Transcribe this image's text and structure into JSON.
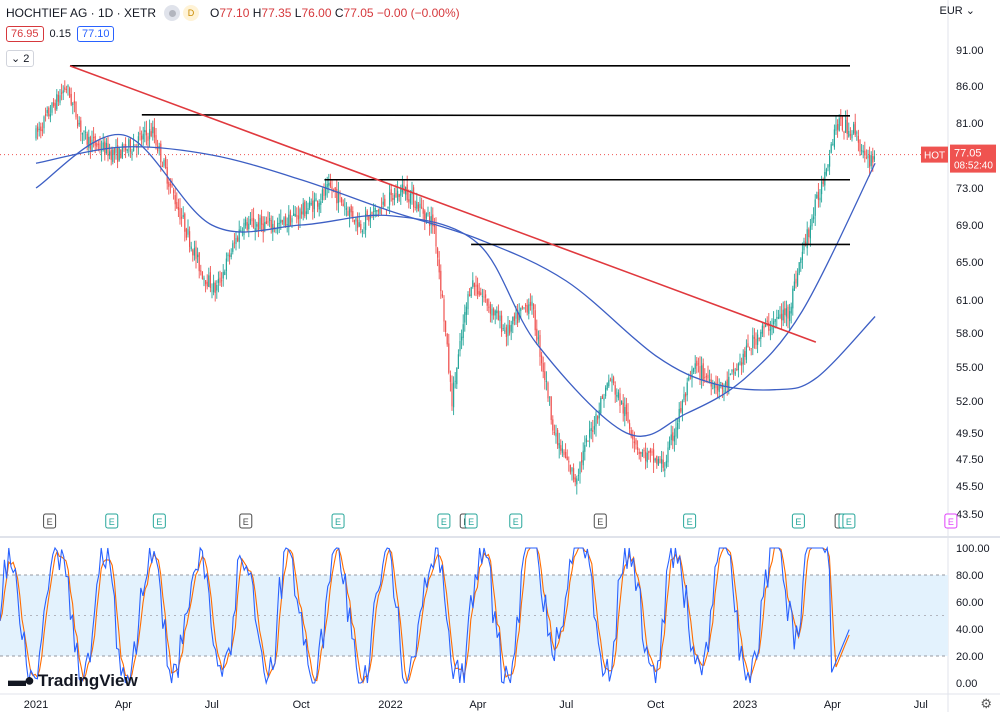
{
  "header": {
    "symbol": "HOCHTIEF AG · 1D · XETR",
    "d_badge": "D",
    "o_label": "O",
    "o_value": "77.10",
    "h_label": "H",
    "h_value": "77.35",
    "l_label": "L",
    "l_value": "76.00",
    "c_label": "C",
    "c_value": "77.05",
    "change": "−0.00 (−0.00%)",
    "bid": "76.95",
    "spread": "0.15",
    "ask": "77.10",
    "collapse_count": "2",
    "currency": "EUR"
  },
  "price_tag": {
    "ticker": "HOT",
    "price": "77.05",
    "countdown": "08:52:40"
  },
  "branding": "TradingView",
  "colors": {
    "up": "#26a69a",
    "down": "#ef5350",
    "trendline": "#e0393e",
    "ma": "#3d5fc4",
    "stoch_k": "#2962ff",
    "stoch_d": "#ff6d00",
    "band": "#e3f2fd"
  },
  "chart_data": [
    {
      "type": "candlestick",
      "title": "",
      "y_ticks": [
        "91.00",
        "86.00",
        "81.00",
        "77.00",
        "73.00",
        "69.00",
        "65.00",
        "61.00",
        "58.00",
        "55.00",
        "52.00",
        "49.50",
        "47.50",
        "45.50",
        "43.50"
      ],
      "x_ticks": [
        "2021",
        "Apr",
        "Jul",
        "Oct",
        "2022",
        "Apr",
        "Jul",
        "Oct",
        "2023",
        "Apr",
        "Jul"
      ],
      "approx_close_path": [
        {
          "date": "2021-01-01",
          "close": 79.5
        },
        {
          "date": "2021-02-01",
          "close": 86
        },
        {
          "date": "2021-02-20",
          "close": 79
        },
        {
          "date": "2021-03-25",
          "close": 77
        },
        {
          "date": "2021-05-01",
          "close": 80
        },
        {
          "date": "2021-05-20",
          "close": 73
        },
        {
          "date": "2021-06-20",
          "close": 64
        },
        {
          "date": "2021-07-05",
          "close": 62
        },
        {
          "date": "2021-08-01",
          "close": 69
        },
        {
          "date": "2021-09-10",
          "close": 69
        },
        {
          "date": "2021-10-10",
          "close": 71
        },
        {
          "date": "2021-11-01",
          "close": 73
        },
        {
          "date": "2021-12-01",
          "close": 69
        },
        {
          "date": "2022-01-15",
          "close": 73
        },
        {
          "date": "2022-02-15",
          "close": 69
        },
        {
          "date": "2022-03-05",
          "close": 52
        },
        {
          "date": "2022-03-25",
          "close": 63
        },
        {
          "date": "2022-05-01",
          "close": 58
        },
        {
          "date": "2022-05-25",
          "close": 61
        },
        {
          "date": "2022-06-20",
          "close": 49
        },
        {
          "date": "2022-07-10",
          "close": 46
        },
        {
          "date": "2022-08-15",
          "close": 54
        },
        {
          "date": "2022-09-15",
          "close": 48
        },
        {
          "date": "2022-10-10",
          "close": 47
        },
        {
          "date": "2022-11-10",
          "close": 55
        },
        {
          "date": "2022-12-10",
          "close": 53
        },
        {
          "date": "2023-01-15",
          "close": 58
        },
        {
          "date": "2023-02-15",
          "close": 60
        },
        {
          "date": "2023-03-01",
          "close": 66
        },
        {
          "date": "2023-03-20",
          "close": 73
        },
        {
          "date": "2023-04-05",
          "close": 81
        },
        {
          "date": "2023-04-25",
          "close": 80
        },
        {
          "date": "2023-05-05",
          "close": 76
        },
        {
          "date": "2023-05-15",
          "close": 77.05
        }
      ],
      "horizontal_lines": [
        88.8,
        82.1,
        74.0,
        66.9
      ],
      "trendline": {
        "from": {
          "date": "2021-02-05",
          "price": 88.8
        },
        "to": {
          "date": "2023-03-15",
          "price": 57.2
        }
      },
      "moving_averages": [
        {
          "name": "",
          "path": [
            {
              "date": "2021-01-01",
              "v": 73
            },
            {
              "date": "2021-04-01",
              "v": 79.5
            },
            {
              "date": "2021-07-01",
              "v": 69
            },
            {
              "date": "2021-10-01",
              "v": 69
            },
            {
              "date": "2022-01-01",
              "v": 70
            },
            {
              "date": "2022-04-01",
              "v": 67
            },
            {
              "date": "2022-06-01",
              "v": 57
            },
            {
              "date": "2022-09-01",
              "v": 49.5
            },
            {
              "date": "2022-11-01",
              "v": 51
            },
            {
              "date": "2023-01-01",
              "v": 54
            },
            {
              "date": "2023-03-01",
              "v": 60
            },
            {
              "date": "2023-05-15",
              "v": 76
            }
          ]
        },
        {
          "name": "",
          "path": [
            {
              "date": "2021-01-01",
              "v": 76
            },
            {
              "date": "2021-04-01",
              "v": 78
            },
            {
              "date": "2021-07-01",
              "v": 77
            },
            {
              "date": "2021-10-01",
              "v": 74
            },
            {
              "date": "2022-01-01",
              "v": 70.5
            },
            {
              "date": "2022-04-01",
              "v": 67.5
            },
            {
              "date": "2022-07-01",
              "v": 63
            },
            {
              "date": "2022-10-01",
              "v": 56
            },
            {
              "date": "2022-12-01",
              "v": 53.5
            },
            {
              "date": "2023-02-01",
              "v": 53
            },
            {
              "date": "2023-03-15",
              "v": 54
            },
            {
              "date": "2023-05-15",
              "v": 59.5
            }
          ]
        }
      ],
      "earnings_markers": [
        "2021-01-15",
        "2021-03-20",
        "2021-05-08",
        "2021-08-05",
        "2021-11-08",
        "2022-02-25",
        "2022-03-20",
        "2022-03-25",
        "2022-05-10",
        "2022-08-05",
        "2022-11-05",
        "2023-02-25",
        "2023-04-10",
        "2023-04-14",
        "2023-04-18",
        "2023-08-01"
      ]
    },
    {
      "type": "line",
      "title": "",
      "y_ticks": [
        "100.00",
        "80.00",
        "60.00",
        "40.00",
        "20.00",
        "0.00"
      ],
      "ylim": [
        0,
        100
      ],
      "band": [
        20,
        80
      ],
      "series": [
        {
          "name": ""
        },
        {
          "name": ""
        }
      ]
    }
  ]
}
